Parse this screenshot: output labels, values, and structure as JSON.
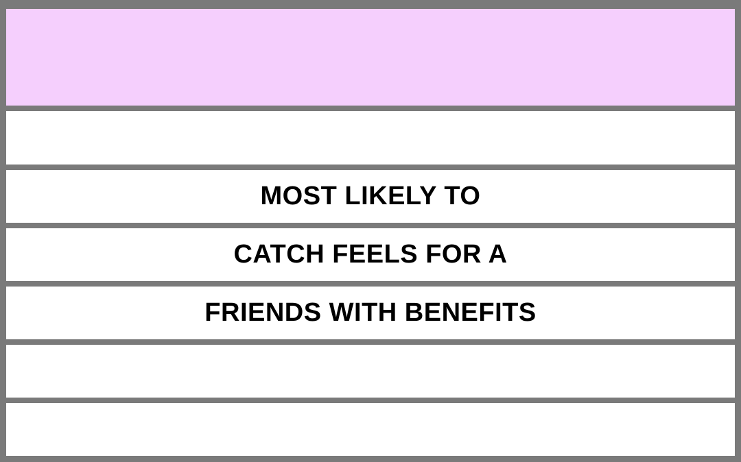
{
  "colors": {
    "frame": "#7a7a7a",
    "header": "#f5cffd",
    "row": "#ffffff",
    "text": "#000000"
  },
  "rows": [
    {
      "text": ""
    },
    {
      "text": "MOST LIKELY TO"
    },
    {
      "text": "CATCH FEELS FOR A"
    },
    {
      "text": "FRIENDS WITH BENEFITS"
    },
    {
      "text": ""
    },
    {
      "text": ""
    }
  ]
}
